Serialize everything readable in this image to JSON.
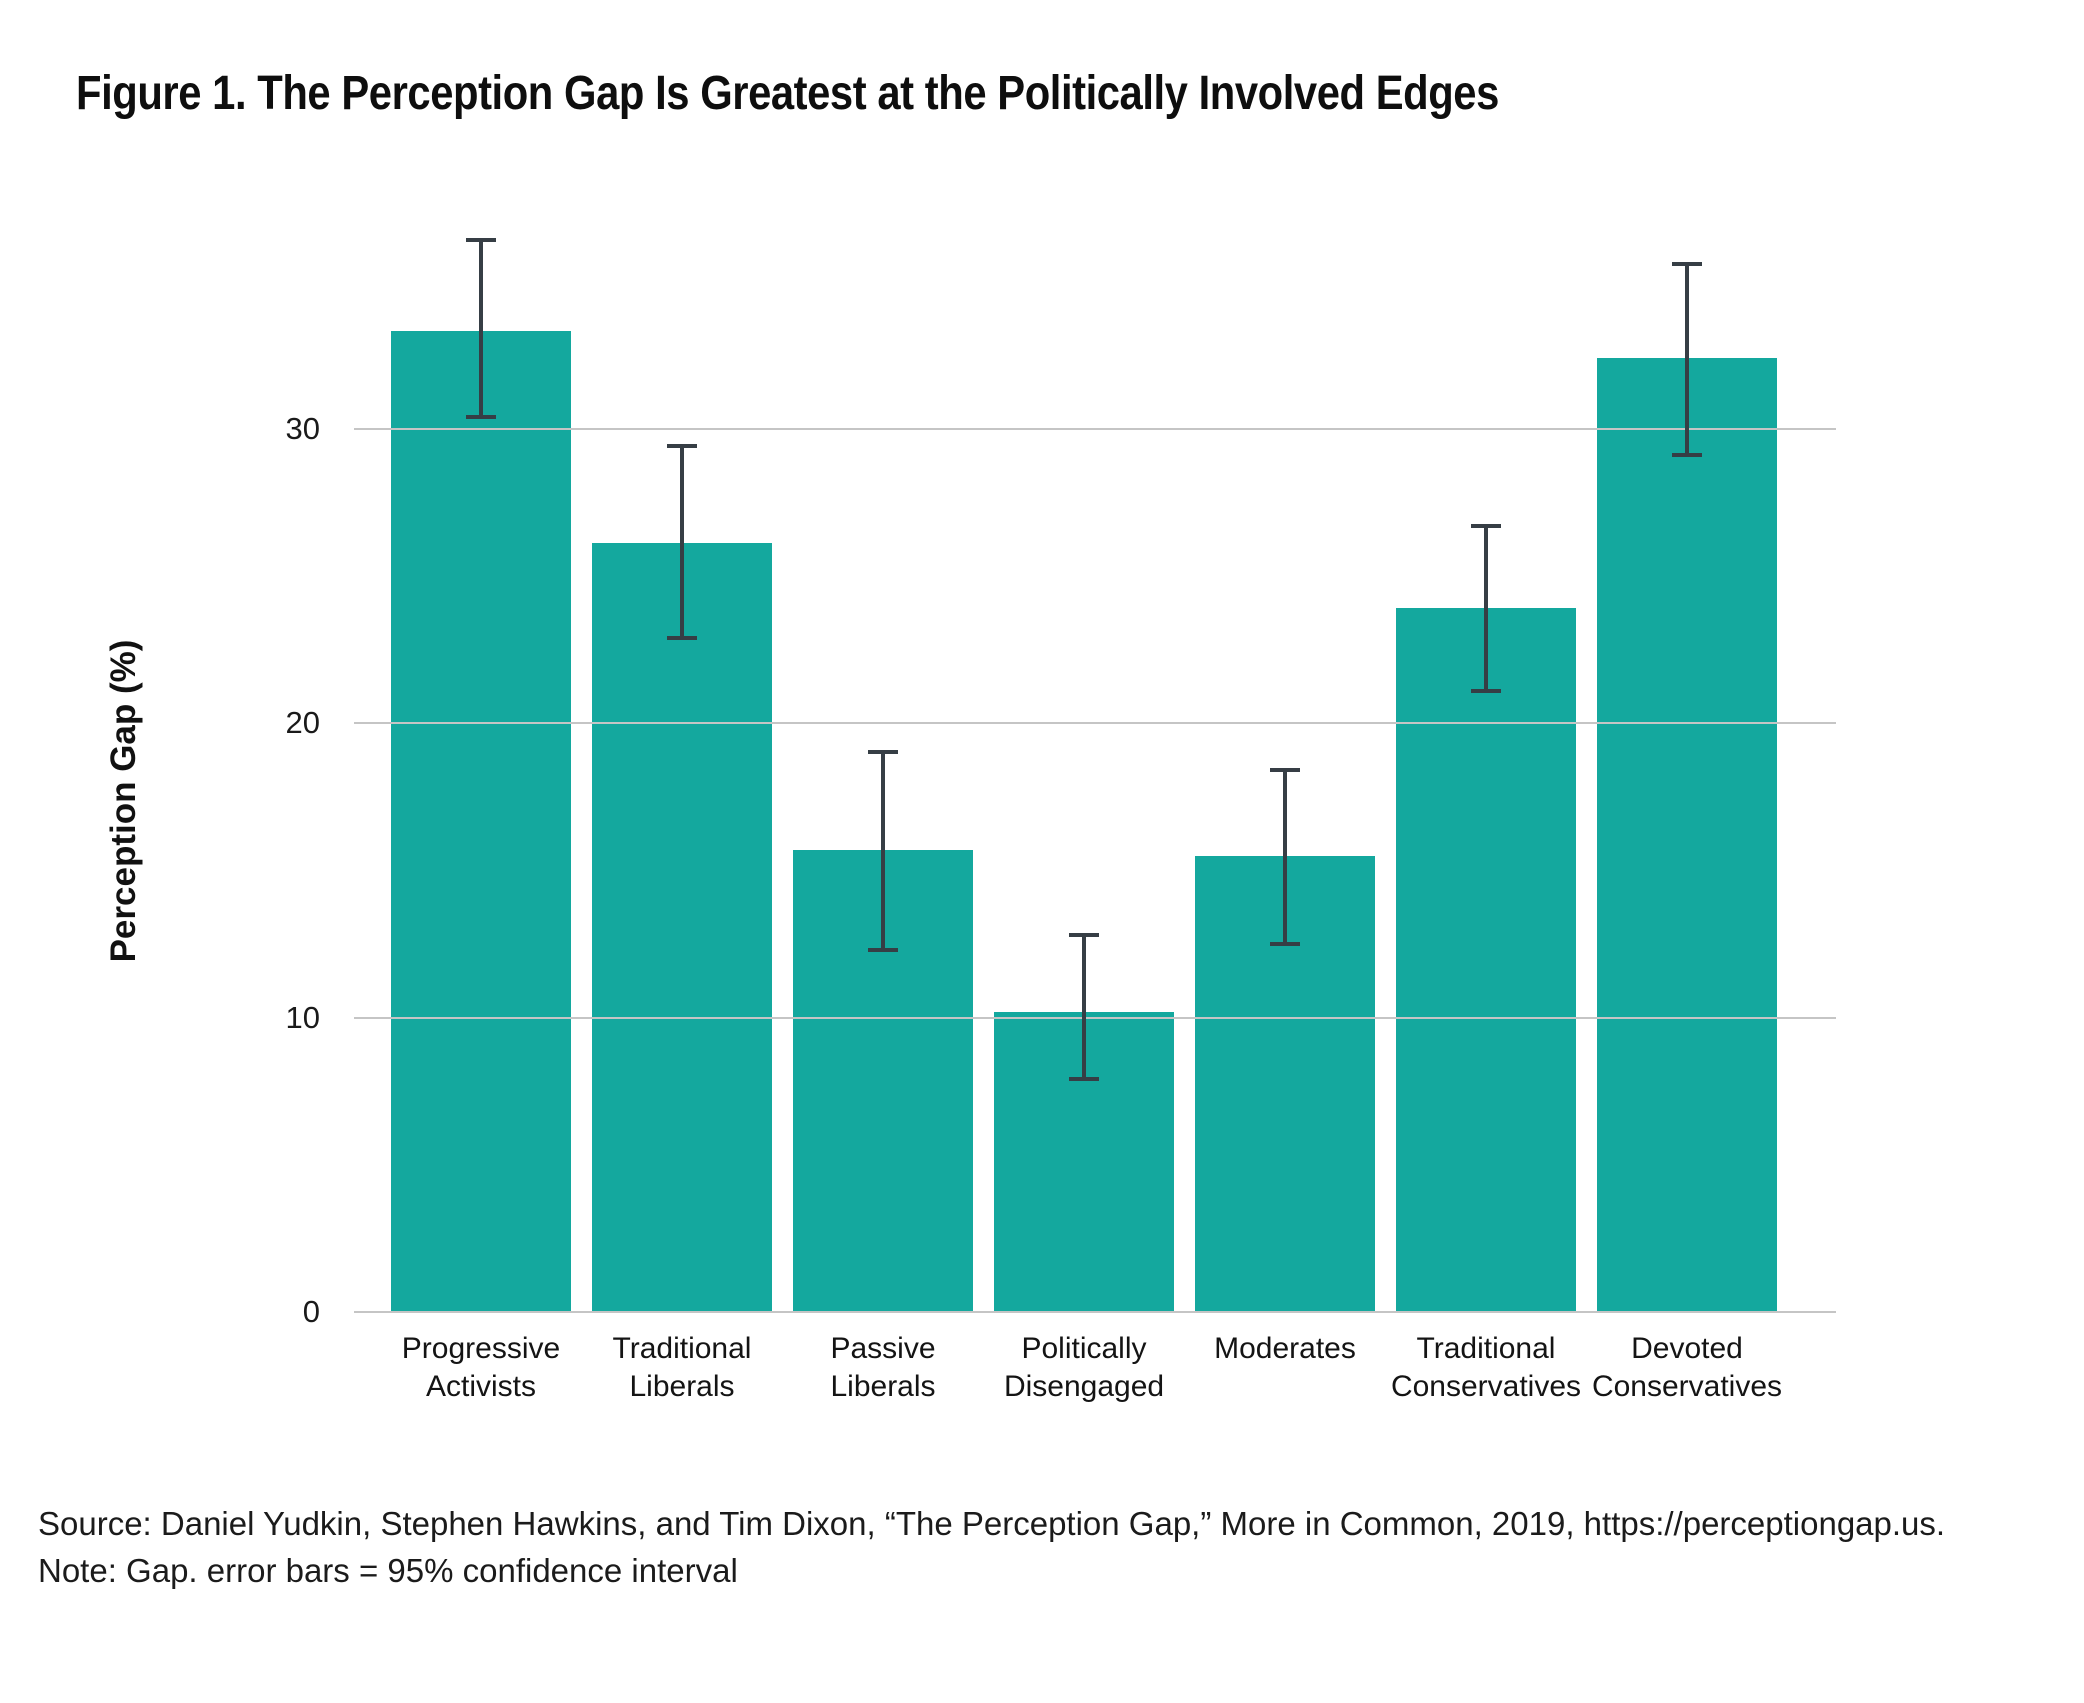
{
  "figure": {
    "source": "Source: Daniel Yudkin, Stephen Hawkins, and Tim Dixon, “The Perception Gap,” More in Common, 2019, https://perceptiongap.us.",
    "note": "Note: Gap. error bars = 95% confidence interval"
  },
  "chart_data": {
    "type": "bar",
    "title": "Figure 1. The Perception Gap Is Greatest at the Politically Involved Edges",
    "xlabel": "",
    "ylabel": "Perception Gap (%)",
    "categories": [
      "Progressive Activists",
      "Traditional Liberals",
      "Passive Liberals",
      "Politically Disengaged",
      "Moderates",
      "Traditional Conservatives",
      "Devoted Conservatives"
    ],
    "category_label_lines": [
      [
        "Progressive",
        "Activists"
      ],
      [
        "Traditional",
        "Liberals"
      ],
      [
        "Passive",
        "Liberals"
      ],
      [
        "Politically",
        "Disengaged"
      ],
      [
        "Moderates"
      ],
      [
        "Traditional",
        "Conservatives"
      ],
      [
        "Devoted",
        "Conservatives"
      ]
    ],
    "series": [
      {
        "name": "Perception Gap",
        "values": [
          33.3,
          26.1,
          15.7,
          10.2,
          15.5,
          23.9,
          32.4
        ],
        "ci_low": [
          30.4,
          22.9,
          12.3,
          7.9,
          12.5,
          21.1,
          29.1
        ],
        "ci_high": [
          36.4,
          29.4,
          19.0,
          12.8,
          18.4,
          26.7,
          35.6
        ]
      }
    ],
    "yticks": [
      0,
      10,
      20,
      30
    ],
    "ylim": [
      0,
      38.8
    ],
    "grid": true,
    "gridlines_over_bars": true,
    "legend_position": "none",
    "error_bars": "95% confidence interval",
    "bar_color": "#14A89E",
    "error_bar_color": "#363E45",
    "gridline_color": "#C5C5C5",
    "background_color": "#FFFFFF",
    "text_color": "#1A1A1A"
  }
}
